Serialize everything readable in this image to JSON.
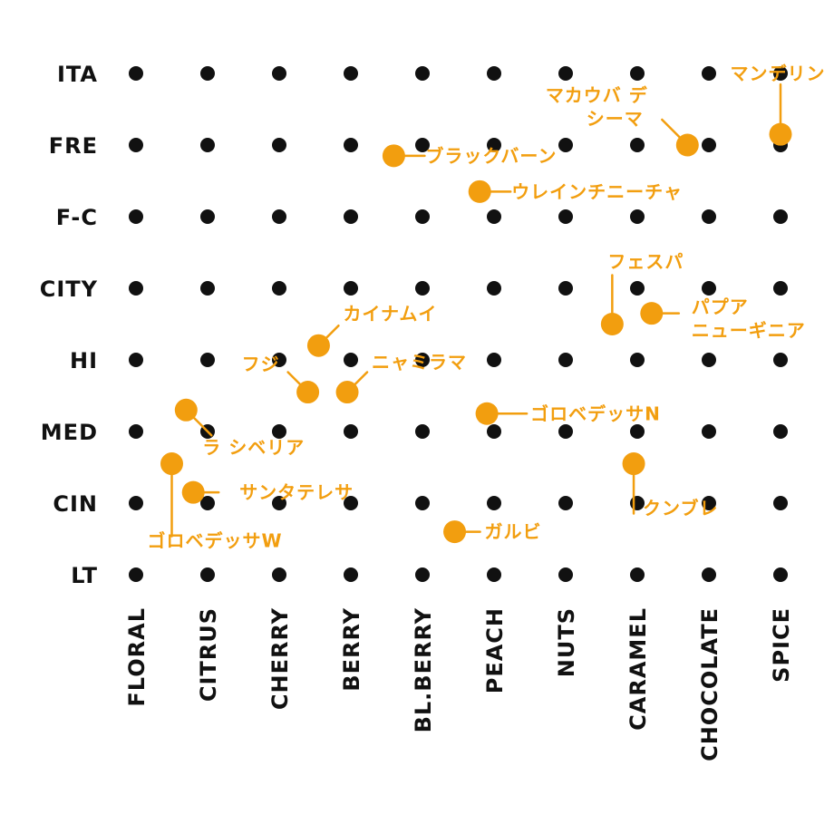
{
  "chart_data": {
    "type": "scatter",
    "title": "",
    "xlabel": "",
    "ylabel": "",
    "grid": "dot-matrix",
    "x_categories": [
      "FLORAL",
      "CITRUS",
      "CHERRY",
      "BERRY",
      "BL.BERRY",
      "PEACH",
      "NUTS",
      "CARAMEL",
      "CHOCOLATE",
      "SPICE"
    ],
    "y_categories": [
      "ITA",
      "FRE",
      "F-C",
      "CITY",
      "HI",
      "MED",
      "CIN",
      "LT"
    ],
    "marker_color": "#f29e0f",
    "grid_color": "#111111",
    "points": [
      {
        "label": "マンデリン",
        "x": 9.0,
        "y": 0.85
      },
      {
        "label": "マカウバ デ シーマ",
        "x": 7.7,
        "y": 1.0
      },
      {
        "label": "ブラックバーン",
        "x": 3.6,
        "y": 1.15
      },
      {
        "label": "ウレインチニーチャ",
        "x": 4.8,
        "y": 1.65
      },
      {
        "label": "フェスパ",
        "x": 6.65,
        "y": 3.5
      },
      {
        "label": "パプアニューギニア",
        "x": 7.2,
        "y": 3.35
      },
      {
        "label": "カイナムイ",
        "x": 2.55,
        "y": 3.8
      },
      {
        "label": "フジ",
        "x": 2.4,
        "y": 4.45
      },
      {
        "label": "ニャミラマ",
        "x": 2.95,
        "y": 4.45
      },
      {
        "label": "ゴロベデッサN",
        "x": 4.9,
        "y": 4.75
      },
      {
        "label": "ラ シベリア",
        "x": 0.7,
        "y": 4.7
      },
      {
        "label": "ゴロベデッサW",
        "x": 0.5,
        "y": 5.45
      },
      {
        "label": "サンタテレサ",
        "x": 0.8,
        "y": 5.85
      },
      {
        "label": "クンブレ",
        "x": 6.95,
        "y": 5.45
      },
      {
        "label": "ガルビ",
        "x": 4.45,
        "y": 6.4
      }
    ]
  }
}
